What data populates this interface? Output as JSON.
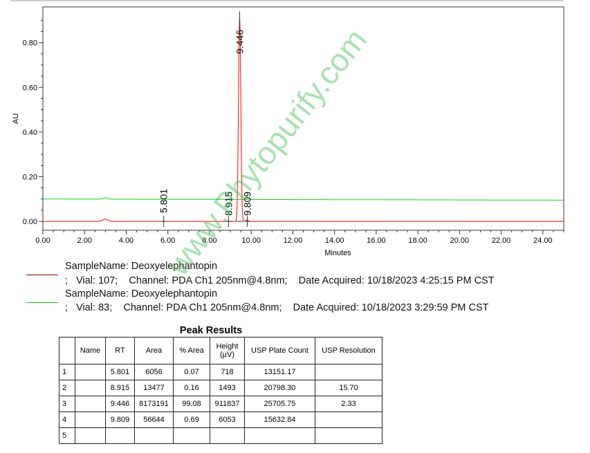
{
  "chart_data": {
    "type": "line",
    "xlabel": "Minutes",
    "ylabel": "AU",
    "xlim": [
      0,
      25
    ],
    "ylim": [
      -0.04,
      0.96
    ],
    "xticks": [
      "0.00",
      "2.00",
      "4.00",
      "6.00",
      "8.00",
      "10.00",
      "12.00",
      "14.00",
      "16.00",
      "18.00",
      "20.00",
      "22.00",
      "24.00"
    ],
    "yticks": [
      "0.00",
      "0.20",
      "0.40",
      "0.60",
      "0.80"
    ],
    "grid": false,
    "series": [
      {
        "color": "#ff0000",
        "baseline": 0.0,
        "peaks": [
          {
            "rt": 3.0,
            "height": 0.01,
            "width": 0.12
          },
          {
            "rt": 5.801,
            "height": 0.0007
          },
          {
            "rt": 8.915,
            "height": 0.0015
          },
          {
            "rt": 9.446,
            "height": 0.912
          },
          {
            "rt": 9.809,
            "height": 0.006
          }
        ]
      },
      {
        "color": "#00dd00",
        "baseline": 0.1,
        "peaks": [
          {
            "rt": 3.0,
            "height": 0.006,
            "width": 0.12
          }
        ]
      }
    ],
    "peak_labels": [
      "5.801",
      "8.915",
      "9.446",
      "9.809"
    ]
  },
  "watermark": "www.Phytopurify.com",
  "legend": [
    {
      "color": "#8b0000",
      "line1": "SampleName: Deoxyelephantopin",
      "line2": ";   Vial: 107;    Channel: PDA Ch1 205nm@4.8nm;    Date Acquired: 10/18/2023 4:25:15 PM CST"
    },
    {
      "color": "#00cc00",
      "line1": "SampleName: Deoxyelephantopin",
      "line2": ";   Vial: 83;    Channel: PDA Ch1 205nm@4.8nm;    Date Acquired: 10/18/2023 3:29:59 PM CST"
    }
  ],
  "table": {
    "title": "Peak Results",
    "headers": [
      "",
      "Name",
      "RT",
      "Area",
      "% Area",
      "Height (µV)",
      "USP Plate Count",
      "USP Resolution"
    ],
    "rows": [
      [
        "1",
        "",
        "5.801",
        "6056",
        "0.07",
        "718",
        "13151.17",
        ""
      ],
      [
        "2",
        "",
        "8.915",
        "13477",
        "0.16",
        "1493",
        "20798.30",
        "15.70"
      ],
      [
        "3",
        "",
        "9.446",
        "8173191",
        "99.08",
        "911837",
        "25705.75",
        "2.33"
      ],
      [
        "4",
        "",
        "9.809",
        "56644",
        "0.69",
        "6053",
        "15632.84",
        ""
      ],
      [
        "5",
        "",
        "",
        "",
        "",
        "",
        "",
        ""
      ]
    ]
  }
}
